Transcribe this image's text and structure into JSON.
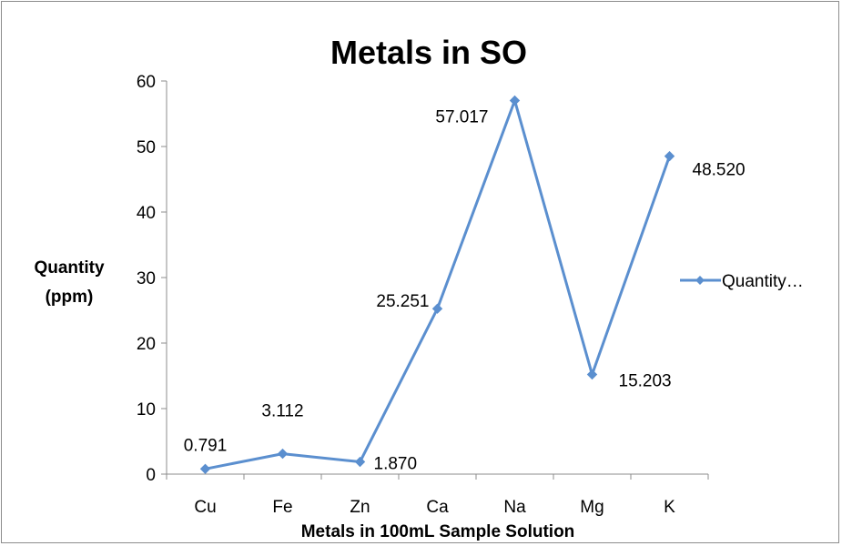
{
  "chart_data": {
    "type": "line",
    "title": "Metals in SO",
    "xlabel": "Metals in 100mL Sample Solution",
    "ylabel_lines": [
      "Quantity",
      "(ppm)"
    ],
    "categories": [
      "Cu",
      "Fe",
      "Zn",
      "Ca",
      "Na",
      "Mg",
      "K"
    ],
    "series": [
      {
        "name": "Quantity…",
        "values": [
          0.791,
          3.112,
          1.87,
          25.251,
          57.017,
          15.203,
          48.52
        ],
        "labels": [
          "0.791",
          "3.112",
          "1.870",
          "25.251",
          "57.017",
          "15.203",
          "48.520"
        ]
      }
    ],
    "ylim": [
      0,
      60
    ],
    "yticks": [
      0,
      10,
      20,
      30,
      40,
      50,
      60
    ],
    "legend_position": "right",
    "grid": false,
    "colors": {
      "series": "#5b8fcf",
      "axis": "#8c8c8c"
    }
  }
}
